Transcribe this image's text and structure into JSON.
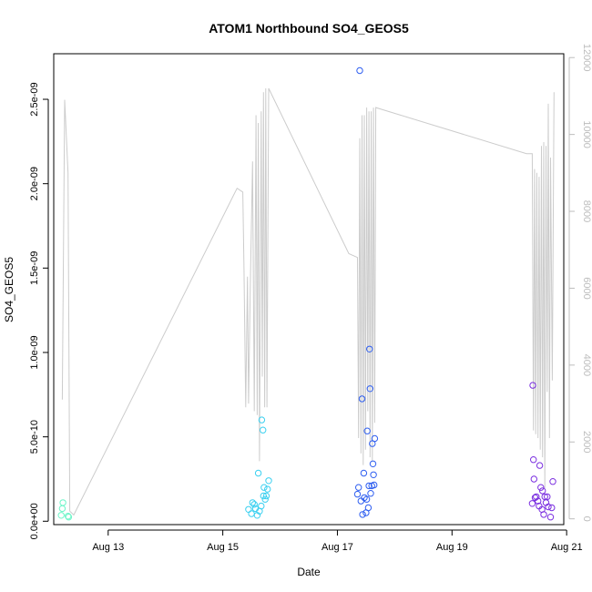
{
  "chart_data": {
    "type": "scatter",
    "title": "ATOM1 Northbound SO4_GEOS5",
    "xlabel": "Date",
    "ylabel": "SO4_GEOS5",
    "x_range_days": [
      12.05,
      20.95
    ],
    "ylim": [
      -2e-11,
      2.77e-09
    ],
    "y2lim": [
      -150,
      12100
    ],
    "x_ticks": [
      {
        "value": 13,
        "label": "Aug 13"
      },
      {
        "value": 15,
        "label": "Aug 15"
      },
      {
        "value": 17,
        "label": "Aug 17"
      },
      {
        "value": 19,
        "label": "Aug 19"
      },
      {
        "value": 21,
        "label": "Aug 21"
      }
    ],
    "y_ticks": [
      {
        "value": 0,
        "label": "0.0e+00"
      },
      {
        "value": 5e-10,
        "label": "5.0e-10"
      },
      {
        "value": 1e-09,
        "label": "1.0e-09"
      },
      {
        "value": 1.5e-09,
        "label": "1.5e-09"
      },
      {
        "value": 2e-09,
        "label": "2.0e-09"
      },
      {
        "value": 2.5e-09,
        "label": "2.5e-09"
      }
    ],
    "y2_ticks": [
      {
        "value": 0,
        "label": "0"
      },
      {
        "value": 2000,
        "label": "2000"
      },
      {
        "value": 4000,
        "label": "4000"
      },
      {
        "value": 6000,
        "label": "6000"
      },
      {
        "value": 8000,
        "label": "8000"
      },
      {
        "value": 10000,
        "label": "10000"
      },
      {
        "value": 12000,
        "label": "12000"
      }
    ],
    "points": [
      {
        "x": 12.21,
        "y": 1.1e-10,
        "color": "#6ef5c8"
      },
      {
        "x": 12.18,
        "y": 3.5e-11,
        "color": "#6ef5c8"
      },
      {
        "x": 12.2,
        "y": 7.5e-11,
        "color": "#6ef5c8"
      },
      {
        "x": 12.3,
        "y": 3e-11,
        "color": "#6ef5c8"
      },
      {
        "x": 12.31,
        "y": 2.5e-11,
        "color": "#6ef5c8"
      },
      {
        "x": 15.45,
        "y": 7e-11,
        "color": "#3ad0f0"
      },
      {
        "x": 15.5,
        "y": 4.5e-11,
        "color": "#3ad0f0"
      },
      {
        "x": 15.52,
        "y": 1.1e-10,
        "color": "#3ad0f0"
      },
      {
        "x": 15.55,
        "y": 1e-10,
        "color": "#3ad0f0"
      },
      {
        "x": 15.57,
        "y": 7.5e-11,
        "color": "#3ad0f0"
      },
      {
        "x": 15.6,
        "y": 3.5e-11,
        "color": "#3ad0f0"
      },
      {
        "x": 15.62,
        "y": 2.85e-10,
        "color": "#3ad0f0"
      },
      {
        "x": 15.64,
        "y": 6e-11,
        "color": "#3ad0f0"
      },
      {
        "x": 15.67,
        "y": 9e-11,
        "color": "#3ad0f0"
      },
      {
        "x": 15.68,
        "y": 6e-10,
        "color": "#3ad0f0"
      },
      {
        "x": 15.7,
        "y": 5.4e-10,
        "color": "#3ad0f0"
      },
      {
        "x": 15.71,
        "y": 1.5e-10,
        "color": "#3ad0f0"
      },
      {
        "x": 15.72,
        "y": 2e-10,
        "color": "#3ad0f0"
      },
      {
        "x": 15.74,
        "y": 1.3e-10,
        "color": "#3ad0f0"
      },
      {
        "x": 15.76,
        "y": 1.5e-10,
        "color": "#3ad0f0"
      },
      {
        "x": 15.78,
        "y": 1.9e-10,
        "color": "#3ad0f0"
      },
      {
        "x": 15.8,
        "y": 2.4e-10,
        "color": "#3ad0f0"
      },
      {
        "x": 17.35,
        "y": 1.6e-10,
        "color": "#2e5ef0"
      },
      {
        "x": 17.37,
        "y": 2e-10,
        "color": "#2e5ef0"
      },
      {
        "x": 17.39,
        "y": 2.67e-09,
        "color": "#2e5ef0"
      },
      {
        "x": 17.41,
        "y": 1.2e-10,
        "color": "#2e5ef0"
      },
      {
        "x": 17.43,
        "y": 7.25e-10,
        "color": "#2e5ef0"
      },
      {
        "x": 17.44,
        "y": 4e-11,
        "color": "#2e5ef0"
      },
      {
        "x": 17.46,
        "y": 2.85e-10,
        "color": "#2e5ef0"
      },
      {
        "x": 17.47,
        "y": 1.4e-10,
        "color": "#2e5ef0"
      },
      {
        "x": 17.5,
        "y": 5e-11,
        "color": "#2e5ef0"
      },
      {
        "x": 17.51,
        "y": 1.3e-10,
        "color": "#2e5ef0"
      },
      {
        "x": 17.52,
        "y": 5.35e-10,
        "color": "#2e5ef0"
      },
      {
        "x": 17.54,
        "y": 8e-11,
        "color": "#2e5ef0"
      },
      {
        "x": 17.55,
        "y": 2.1e-10,
        "color": "#2e5ef0"
      },
      {
        "x": 17.56,
        "y": 1.02e-09,
        "color": "#2e5ef0"
      },
      {
        "x": 17.57,
        "y": 7.85e-10,
        "color": "#2e5ef0"
      },
      {
        "x": 17.58,
        "y": 1.65e-10,
        "color": "#2e5ef0"
      },
      {
        "x": 17.6,
        "y": 2.1e-10,
        "color": "#2e5ef0"
      },
      {
        "x": 17.61,
        "y": 4.6e-10,
        "color": "#2e5ef0"
      },
      {
        "x": 17.62,
        "y": 3.4e-10,
        "color": "#2e5ef0"
      },
      {
        "x": 17.63,
        "y": 2.75e-10,
        "color": "#2e5ef0"
      },
      {
        "x": 17.64,
        "y": 2.15e-10,
        "color": "#2e5ef0"
      },
      {
        "x": 17.65,
        "y": 4.9e-10,
        "color": "#2e5ef0"
      },
      {
        "x": 20.4,
        "y": 1.05e-10,
        "color": "#7b2fe0"
      },
      {
        "x": 20.41,
        "y": 8.05e-10,
        "color": "#7b2fe0"
      },
      {
        "x": 20.42,
        "y": 3.65e-10,
        "color": "#7b2fe0"
      },
      {
        "x": 20.43,
        "y": 2.5e-10,
        "color": "#7b2fe0"
      },
      {
        "x": 20.45,
        "y": 1.4e-10,
        "color": "#7b2fe0"
      },
      {
        "x": 20.47,
        "y": 1.45e-10,
        "color": "#7b2fe0"
      },
      {
        "x": 20.5,
        "y": 1.2e-10,
        "color": "#7b2fe0"
      },
      {
        "x": 20.52,
        "y": 9e-11,
        "color": "#7b2fe0"
      },
      {
        "x": 20.53,
        "y": 3.3e-10,
        "color": "#7b2fe0"
      },
      {
        "x": 20.55,
        "y": 2e-10,
        "color": "#7b2fe0"
      },
      {
        "x": 20.57,
        "y": 7e-11,
        "color": "#7b2fe0"
      },
      {
        "x": 20.58,
        "y": 1.8e-10,
        "color": "#7b2fe0"
      },
      {
        "x": 20.6,
        "y": 4e-11,
        "color": "#7b2fe0"
      },
      {
        "x": 20.62,
        "y": 1.45e-10,
        "color": "#7b2fe0"
      },
      {
        "x": 20.64,
        "y": 1.1e-10,
        "color": "#7b2fe0"
      },
      {
        "x": 20.66,
        "y": 1.45e-10,
        "color": "#7b2fe0"
      },
      {
        "x": 20.68,
        "y": 8.5e-11,
        "color": "#7b2fe0"
      },
      {
        "x": 20.72,
        "y": 2.5e-11,
        "color": "#7b2fe0"
      },
      {
        "x": 20.74,
        "y": 8e-11,
        "color": "#7b2fe0"
      },
      {
        "x": 20.76,
        "y": 2.35e-10,
        "color": "#7b2fe0"
      }
    ],
    "altitude_series": {
      "color": "#cccccc",
      "x": [
        12.2,
        12.24,
        12.3,
        12.33,
        12.4,
        15.25,
        15.35,
        15.37,
        15.4,
        15.43,
        15.45,
        15.48,
        15.52,
        15.55,
        15.58,
        15.6,
        15.62,
        15.64,
        15.67,
        15.69,
        15.71,
        15.73,
        15.75,
        15.77,
        15.8,
        17.2,
        17.35,
        17.37,
        17.39,
        17.41,
        17.43,
        17.45,
        17.47,
        17.49,
        17.51,
        17.53,
        17.55,
        17.57,
        17.59,
        17.61,
        17.63,
        17.65,
        17.67,
        20.3,
        20.4,
        20.42,
        20.44,
        20.46,
        20.48,
        20.5,
        20.52,
        20.54,
        20.56,
        20.58,
        20.6,
        20.62,
        20.64,
        20.66,
        20.68,
        20.7,
        20.72,
        20.75,
        20.78
      ],
      "y": [
        3100,
        10900,
        9000,
        200,
        100,
        8600,
        8500,
        6500,
        2900,
        6300,
        3000,
        6000,
        9300,
        2800,
        10500,
        2700,
        10300,
        1500,
        10600,
        3700,
        11100,
        2900,
        11200,
        2900,
        11200,
        6900,
        6800,
        2100,
        9900,
        1700,
        10500,
        1400,
        10500,
        1800,
        10700,
        2800,
        10600,
        1600,
        10600,
        1500,
        10700,
        2500,
        10700,
        9500,
        9500,
        2300,
        9100,
        2200,
        9000,
        2100,
        8900,
        1800,
        9700,
        1600,
        9800,
        800,
        9700,
        3300,
        10800,
        2100,
        9400,
        3600,
        11100
      ]
    }
  }
}
